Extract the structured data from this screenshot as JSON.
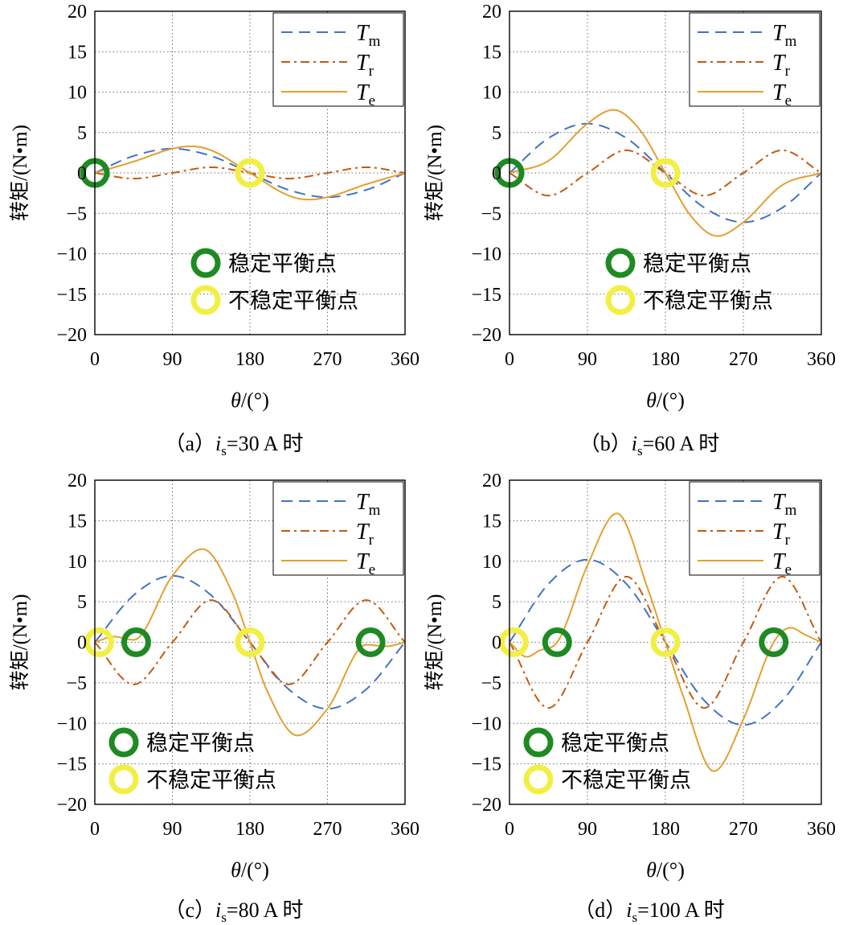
{
  "colors": {
    "Tm": "#4472c4",
    "Tr": "#c55a11",
    "Te": "#e3a02e",
    "stable": "#1e8a23",
    "unstable": "#f2ef44",
    "grid": "#6e6e6e"
  },
  "marker_legend": {
    "stable_label": "稳定平衡点",
    "unstable_label": "不稳定平衡点"
  },
  "chart_data": [
    {
      "type": "line",
      "caption": "（a） is=30 A 时",
      "caption_prefix": "（a）",
      "caption_var": "i",
      "caption_sub": "s",
      "caption_suffix": "=30 A 时",
      "xlabel_var": "θ",
      "xlabel_unit": "/(°)",
      "ylabel": "转矩/(N•m)",
      "xlim": [
        0,
        360
      ],
      "ylim": [
        -20,
        20
      ],
      "xticks": [
        "0",
        "90",
        "180",
        "270",
        "360"
      ],
      "yticks": [
        "20",
        "15",
        "10",
        "5",
        "0",
        "−5",
        "−10",
        "−15",
        "−20"
      ],
      "grid": true,
      "legend_position": "top-right",
      "marker_legend_position": "bottom-center",
      "series": [
        {
          "name": "Tm",
          "name_main": "T",
          "name_sub": "m",
          "style": "dashed",
          "x": [
            0,
            45,
            90,
            135,
            180,
            225,
            270,
            315,
            360
          ],
          "y": [
            0,
            2.1,
            3,
            2.1,
            0,
            -2.1,
            -3,
            -2.1,
            0
          ]
        },
        {
          "name": "Tr",
          "name_main": "T",
          "name_sub": "r",
          "style": "dashdot",
          "x": [
            0,
            45,
            90,
            135,
            180,
            225,
            270,
            315,
            360
          ],
          "y": [
            0,
            -0.7,
            0,
            0.7,
            0,
            -0.7,
            0,
            0.7,
            0
          ]
        },
        {
          "name": "Te",
          "name_main": "T",
          "name_sub": "e",
          "style": "solid",
          "x": [
            0,
            45,
            90,
            112,
            135,
            180,
            225,
            248,
            270,
            315,
            360
          ],
          "y": [
            0,
            1.4,
            3.0,
            3.3,
            2.8,
            0,
            -2.8,
            -3.3,
            -3.0,
            -1.4,
            0
          ]
        }
      ],
      "stable_points": [
        0
      ],
      "unstable_points": [
        180
      ]
    },
    {
      "type": "line",
      "caption": "（b） is=60 A 时",
      "caption_prefix": "（b）",
      "caption_var": "i",
      "caption_sub": "s",
      "caption_suffix": "=60 A 时",
      "xlabel_var": "θ",
      "xlabel_unit": "/(°)",
      "ylabel": "转矩/(N•m)",
      "xlim": [
        0,
        360
      ],
      "ylim": [
        -20,
        20
      ],
      "xticks": [
        "0",
        "90",
        "180",
        "270",
        "360"
      ],
      "yticks": [
        "20",
        "15",
        "10",
        "5",
        "0",
        "−5",
        "−10",
        "−15",
        "−20"
      ],
      "grid": true,
      "legend_position": "top-right",
      "marker_legend_position": "bottom-center",
      "series": [
        {
          "name": "Tm",
          "name_main": "T",
          "name_sub": "m",
          "style": "dashed",
          "x": [
            0,
            45,
            90,
            135,
            180,
            225,
            270,
            315,
            360
          ],
          "y": [
            0,
            4.3,
            6.1,
            4.3,
            0,
            -4.3,
            -6.1,
            -4.3,
            0
          ]
        },
        {
          "name": "Tr",
          "name_main": "T",
          "name_sub": "r",
          "style": "dashdot",
          "x": [
            0,
            45,
            90,
            135,
            180,
            225,
            270,
            315,
            360
          ],
          "y": [
            0,
            -2.8,
            0,
            2.8,
            0,
            -2.8,
            0,
            2.8,
            0
          ]
        },
        {
          "name": "Te",
          "name_main": "T",
          "name_sub": "e",
          "style": "solid",
          "x": [
            0,
            45,
            90,
            120,
            150,
            180,
            210,
            240,
            270,
            315,
            360
          ],
          "y": [
            0,
            1.5,
            6.1,
            7.8,
            5.4,
            0,
            -5.4,
            -7.8,
            -6.1,
            -1.5,
            0
          ]
        }
      ],
      "stable_points": [
        0
      ],
      "unstable_points": [
        180
      ]
    },
    {
      "type": "line",
      "caption": "（c） is=80 A 时",
      "caption_prefix": "（c）",
      "caption_var": "i",
      "caption_sub": "s",
      "caption_suffix": "=80 A 时",
      "xlabel_var": "θ",
      "xlabel_unit": "/(°)",
      "ylabel": "转矩/(N•m)",
      "xlim": [
        0,
        360
      ],
      "ylim": [
        -20,
        20
      ],
      "xticks": [
        "0",
        "90",
        "180",
        "270",
        "360"
      ],
      "yticks": [
        "20",
        "15",
        "10",
        "5",
        "0",
        "−5",
        "−10",
        "−15",
        "−20"
      ],
      "grid": true,
      "legend_position": "top-right",
      "marker_legend_position": "bottom-left",
      "series": [
        {
          "name": "Tm",
          "name_main": "T",
          "name_sub": "m",
          "style": "dashed",
          "x": [
            0,
            45,
            90,
            135,
            180,
            225,
            270,
            315,
            360
          ],
          "y": [
            0,
            5.8,
            8.2,
            5.8,
            0,
            -5.8,
            -8.2,
            -5.8,
            0
          ]
        },
        {
          "name": "Tr",
          "name_main": "T",
          "name_sub": "r",
          "style": "dashdot",
          "x": [
            0,
            45,
            90,
            135,
            180,
            225,
            270,
            315,
            360
          ],
          "y": [
            0,
            -5.2,
            0,
            5.2,
            0,
            -5.2,
            0,
            5.2,
            0
          ]
        },
        {
          "name": "Te",
          "name_main": "T",
          "name_sub": "e",
          "style": "solid",
          "x": [
            0,
            22,
            45,
            90,
            125,
            160,
            180,
            200,
            235,
            270,
            315,
            338,
            360
          ],
          "y": [
            0,
            0.7,
            0.3,
            8.2,
            11.5,
            6.0,
            0,
            -6.0,
            -11.5,
            -8.2,
            -0.3,
            -0.5,
            0
          ]
        }
      ],
      "stable_points": [
        48,
        320
      ],
      "unstable_points": [
        5,
        180
      ]
    },
    {
      "type": "line",
      "caption": "（d） is=100 A 时",
      "caption_prefix": "（d）",
      "caption_var": "i",
      "caption_sub": "s",
      "caption_suffix": "=100 A 时",
      "xlabel_var": "θ",
      "xlabel_unit": "/(°)",
      "ylabel": "转矩/(N•m)",
      "xlim": [
        0,
        360
      ],
      "ylim": [
        -20,
        20
      ],
      "xticks": [
        "0",
        "90",
        "180",
        "270",
        "360"
      ],
      "yticks": [
        "20",
        "15",
        "10",
        "5",
        "0",
        "−5",
        "−10",
        "−15",
        "−20"
      ],
      "grid": true,
      "legend_position": "top-right",
      "marker_legend_position": "bottom-left",
      "series": [
        {
          "name": "Tm",
          "name_main": "T",
          "name_sub": "m",
          "style": "dashed",
          "x": [
            0,
            45,
            90,
            135,
            180,
            225,
            270,
            315,
            360
          ],
          "y": [
            0,
            7.2,
            10.2,
            7.2,
            0,
            -7.2,
            -10.2,
            -7.2,
            0
          ]
        },
        {
          "name": "Tr",
          "name_main": "T",
          "name_sub": "r",
          "style": "dashdot",
          "x": [
            0,
            45,
            90,
            135,
            180,
            225,
            270,
            315,
            360
          ],
          "y": [
            0,
            -8.1,
            0,
            8.1,
            0,
            -8.1,
            0,
            8.1,
            0
          ]
        },
        {
          "name": "Te",
          "name_main": "T",
          "name_sub": "e",
          "style": "solid",
          "x": [
            0,
            20,
            35,
            55,
            90,
            124,
            160,
            180,
            200,
            236,
            270,
            305,
            325,
            340,
            360
          ],
          "y": [
            0,
            -1.8,
            -1.0,
            0,
            9.5,
            15.9,
            6.5,
            0,
            -6.5,
            -15.9,
            -9.5,
            0,
            1.8,
            1.0,
            0
          ]
        }
      ],
      "stable_points": [
        55,
        305
      ],
      "unstable_points": [
        5,
        180
      ]
    }
  ]
}
